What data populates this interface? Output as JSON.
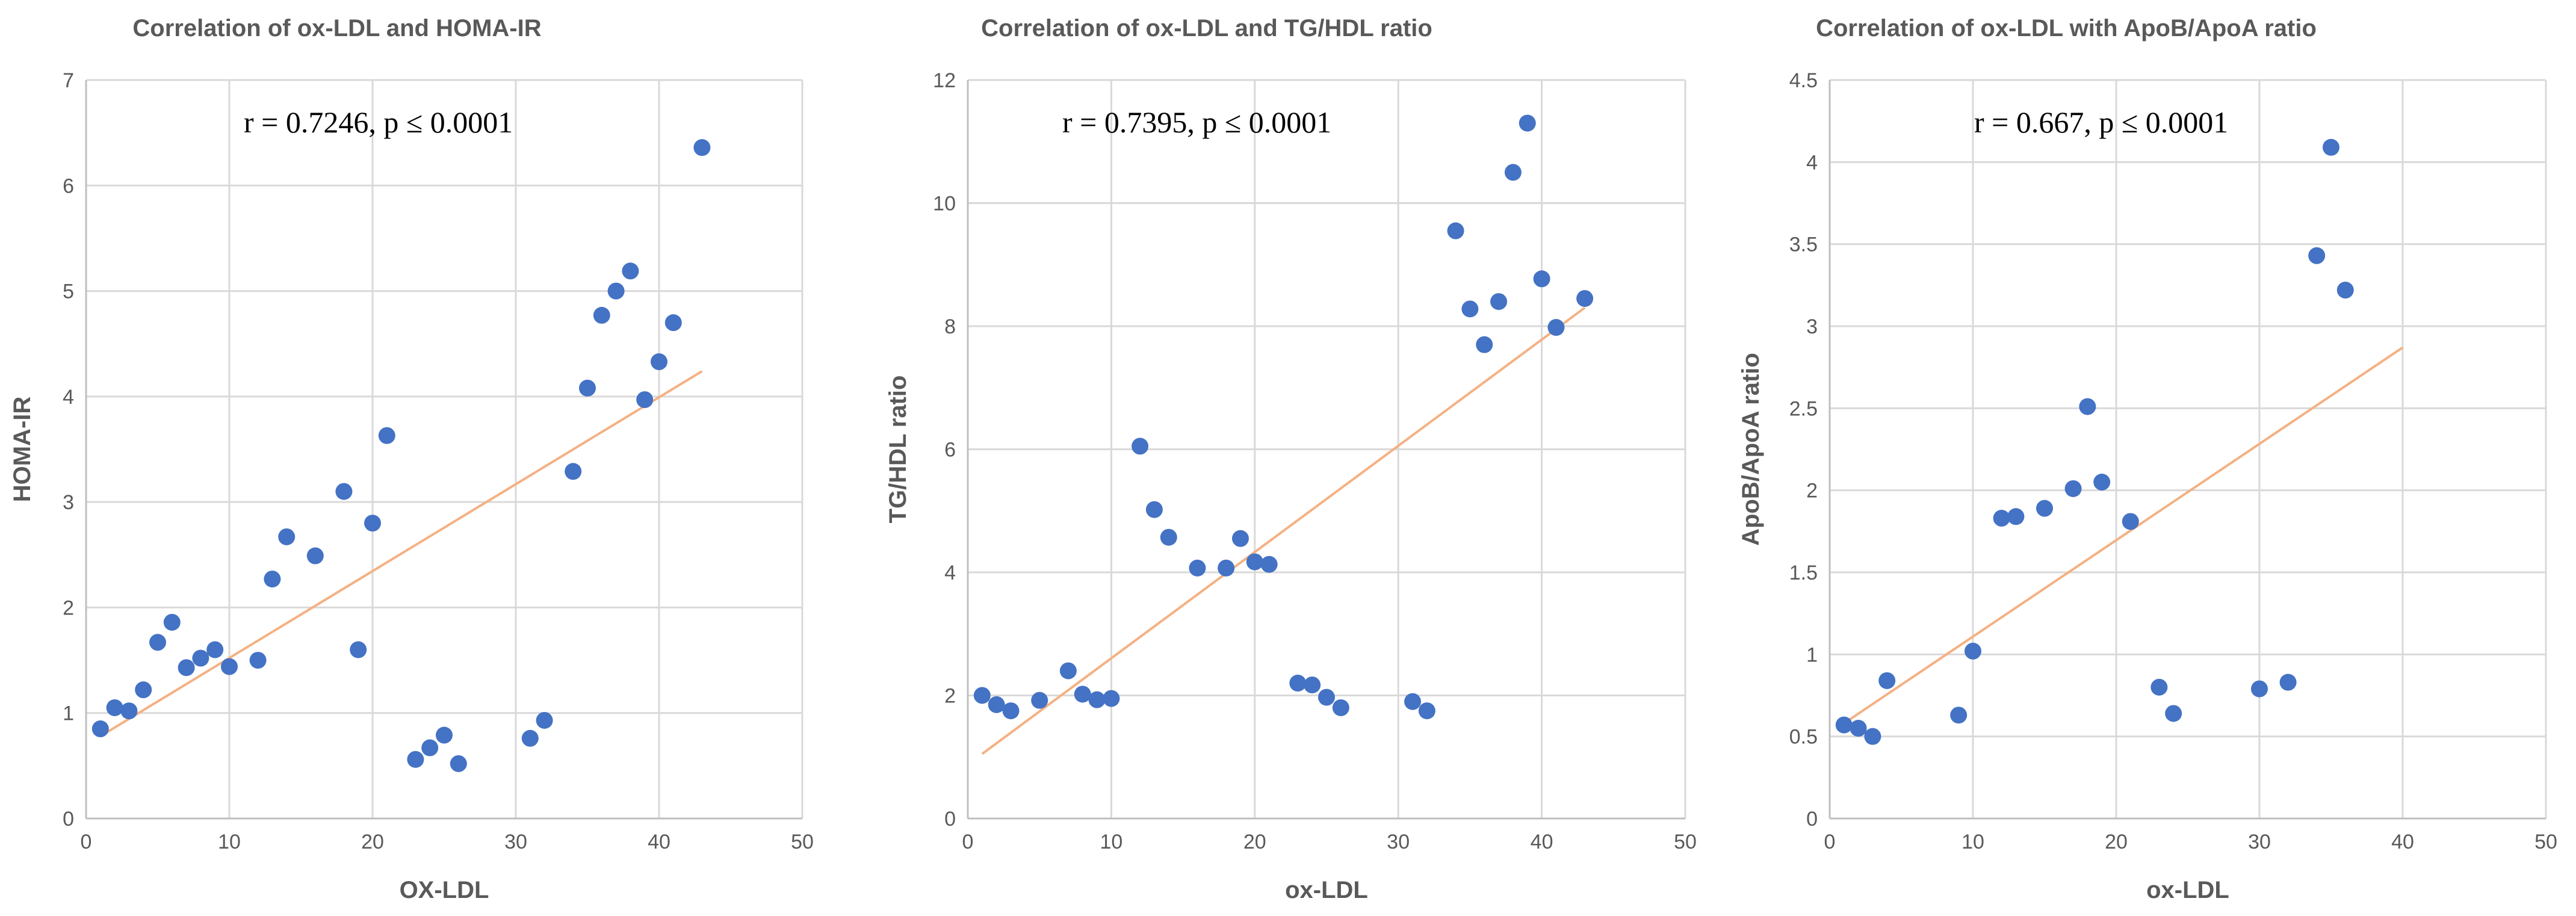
{
  "colors": {
    "point": "#4472c4",
    "trendline": "#f4b183"
  },
  "chart_data": [
    {
      "type": "scatter",
      "title": "Correlation of ox-LDL and HOMA-IR",
      "xlabel": "OX-LDL",
      "ylabel": "HOMA-IR",
      "annotation": "r = 0.7246, p ≤ 0.0001",
      "xlim": [
        0,
        50
      ],
      "ylim": [
        0,
        7
      ],
      "x_ticks": [
        "0",
        "10",
        "20",
        "30",
        "40",
        "50"
      ],
      "y_ticks": [
        "0",
        "1",
        "2",
        "3",
        "4",
        "5",
        "6",
        "7"
      ],
      "grid": true,
      "trendline": {
        "x": [
          1,
          43
        ],
        "y": [
          0.78,
          4.24
        ]
      },
      "points": [
        {
          "x": 1,
          "y": 0.85
        },
        {
          "x": 2,
          "y": 1.05
        },
        {
          "x": 3,
          "y": 1.02
        },
        {
          "x": 4,
          "y": 1.22
        },
        {
          "x": 5,
          "y": 1.67
        },
        {
          "x": 6,
          "y": 1.86
        },
        {
          "x": 7,
          "y": 1.43
        },
        {
          "x": 8,
          "y": 1.52
        },
        {
          "x": 9,
          "y": 1.6
        },
        {
          "x": 10,
          "y": 1.44
        },
        {
          "x": 12,
          "y": 1.5
        },
        {
          "x": 13,
          "y": 2.27
        },
        {
          "x": 14,
          "y": 2.67
        },
        {
          "x": 16,
          "y": 2.49
        },
        {
          "x": 18,
          "y": 3.1
        },
        {
          "x": 19,
          "y": 1.6
        },
        {
          "x": 20,
          "y": 2.8
        },
        {
          "x": 21,
          "y": 3.63
        },
        {
          "x": 23,
          "y": 0.56
        },
        {
          "x": 24,
          "y": 0.67
        },
        {
          "x": 25,
          "y": 0.79
        },
        {
          "x": 26,
          "y": 0.52
        },
        {
          "x": 31,
          "y": 0.76
        },
        {
          "x": 32,
          "y": 0.93
        },
        {
          "x": 34,
          "y": 3.29
        },
        {
          "x": 35,
          "y": 4.08
        },
        {
          "x": 36,
          "y": 4.77
        },
        {
          "x": 37,
          "y": 5.0
        },
        {
          "x": 38,
          "y": 5.19
        },
        {
          "x": 39,
          "y": 3.97
        },
        {
          "x": 40,
          "y": 4.33
        },
        {
          "x": 41,
          "y": 4.7
        },
        {
          "x": 43,
          "y": 6.36
        }
      ]
    },
    {
      "type": "scatter",
      "title": "Correlation of ox-LDL and TG/HDL ratio",
      "xlabel": "ox-LDL",
      "ylabel": "TG/HDL ratio",
      "annotation": "r = 0.7395, p ≤ 0.0001",
      "xlim": [
        0,
        50
      ],
      "ylim": [
        0,
        12
      ],
      "x_ticks": [
        "0",
        "10",
        "20",
        "30",
        "40",
        "50"
      ],
      "y_ticks": [
        "0",
        "2",
        "4",
        "6",
        "8",
        "10",
        "12"
      ],
      "grid": true,
      "trendline": {
        "x": [
          1,
          43
        ],
        "y": [
          1.05,
          8.3
        ]
      },
      "points": [
        {
          "x": 1,
          "y": 2.0
        },
        {
          "x": 2,
          "y": 1.85
        },
        {
          "x": 3,
          "y": 1.75
        },
        {
          "x": 5,
          "y": 1.92
        },
        {
          "x": 7,
          "y": 2.4
        },
        {
          "x": 8,
          "y": 2.02
        },
        {
          "x": 9,
          "y": 1.93
        },
        {
          "x": 10,
          "y": 1.95
        },
        {
          "x": 12,
          "y": 6.05
        },
        {
          "x": 13,
          "y": 5.02
        },
        {
          "x": 14,
          "y": 4.57
        },
        {
          "x": 16,
          "y": 4.07
        },
        {
          "x": 18,
          "y": 4.07
        },
        {
          "x": 19,
          "y": 4.55
        },
        {
          "x": 20,
          "y": 4.17
        },
        {
          "x": 21,
          "y": 4.13
        },
        {
          "x": 23,
          "y": 2.2
        },
        {
          "x": 24,
          "y": 2.17
        },
        {
          "x": 25,
          "y": 1.97
        },
        {
          "x": 26,
          "y": 1.8
        },
        {
          "x": 31,
          "y": 1.9
        },
        {
          "x": 32,
          "y": 1.75
        },
        {
          "x": 34,
          "y": 9.55
        },
        {
          "x": 35,
          "y": 8.28
        },
        {
          "x": 36,
          "y": 7.7
        },
        {
          "x": 37,
          "y": 8.4
        },
        {
          "x": 38,
          "y": 10.5
        },
        {
          "x": 39,
          "y": 11.3
        },
        {
          "x": 40,
          "y": 8.77
        },
        {
          "x": 41,
          "y": 7.98
        },
        {
          "x": 43,
          "y": 8.45
        }
      ]
    },
    {
      "type": "scatter",
      "title": "Correlation of ox-LDL with ApoB/ApoA ratio",
      "xlabel": "ox-LDL",
      "ylabel": "ApoB/ApoA ratio",
      "annotation": "r = 0.667, p ≤ 0.0001",
      "xlim": [
        0,
        50
      ],
      "ylim": [
        0,
        4.5
      ],
      "x_ticks": [
        "0",
        "10",
        "20",
        "30",
        "40",
        "50"
      ],
      "y_ticks": [
        "0",
        "0.5",
        "1",
        "1.5",
        "2",
        "2.5",
        "3",
        "3.5",
        "4",
        "4.5"
      ],
      "grid": true,
      "trendline": {
        "x": [
          1,
          40
        ],
        "y": [
          0.58,
          2.87
        ]
      },
      "points": [
        {
          "x": 1,
          "y": 0.57
        },
        {
          "x": 2,
          "y": 0.55
        },
        {
          "x": 3,
          "y": 0.5
        },
        {
          "x": 4,
          "y": 0.84
        },
        {
          "x": 9,
          "y": 0.63
        },
        {
          "x": 10,
          "y": 1.02
        },
        {
          "x": 12,
          "y": 1.83
        },
        {
          "x": 13,
          "y": 1.84
        },
        {
          "x": 15,
          "y": 1.89
        },
        {
          "x": 17,
          "y": 2.01
        },
        {
          "x": 18,
          "y": 2.51
        },
        {
          "x": 19,
          "y": 2.05
        },
        {
          "x": 21,
          "y": 1.81
        },
        {
          "x": 23,
          "y": 0.8
        },
        {
          "x": 24,
          "y": 0.64
        },
        {
          "x": 30,
          "y": 0.79
        },
        {
          "x": 32,
          "y": 0.83
        },
        {
          "x": 34,
          "y": 3.43
        },
        {
          "x": 35,
          "y": 4.09
        },
        {
          "x": 36,
          "y": 3.22
        }
      ]
    }
  ]
}
